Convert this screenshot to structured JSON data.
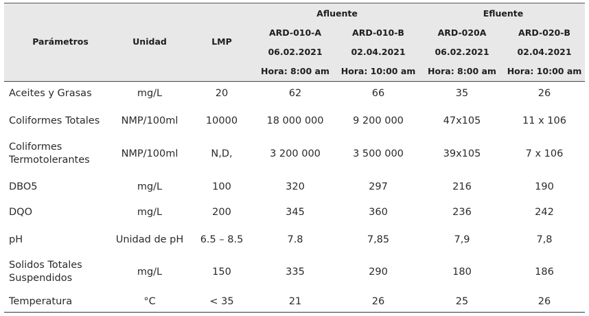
{
  "header": {
    "parametros": "Parámetros",
    "unidad": "Unidad",
    "lmp": "LMP",
    "afluente": "Afluente",
    "efluente": "Efluente",
    "samples": [
      {
        "code": "ARD-010-A",
        "date": "06.02.2021",
        "time": "Hora: 8:00 am"
      },
      {
        "code": "ARD-010-B",
        "date": "02.04.2021",
        "time": "Hora: 10:00 am"
      },
      {
        "code": "ARD-020A",
        "date": "06.02.2021",
        "time": "Hora: 8:00 am"
      },
      {
        "code": "ARD-020-B",
        "date": "02.04.2021",
        "time": "Hora: 10:00 am"
      }
    ]
  },
  "rows": [
    {
      "param": "Aceites y Grasas",
      "unit": "mg/L",
      "lmp": "20",
      "v": [
        "62",
        "66",
        "35",
        "26"
      ]
    },
    {
      "param": "Coliformes Totales",
      "unit": "NMP/100ml",
      "lmp": "10000",
      "v": [
        "18 000 000",
        "9 200 000",
        "47x105",
        "11 x 106"
      ]
    },
    {
      "param": "Coliformes Termotolerantes",
      "unit": "NMP/100ml",
      "lmp": "N,D,",
      "v": [
        "3 200 000",
        "3 500 000",
        "39x105",
        "7 x 106"
      ]
    },
    {
      "param": "DBO5",
      "unit": "mg/L",
      "lmp": "100",
      "v": [
        "320",
        "297",
        "216",
        "190"
      ]
    },
    {
      "param": "DQO",
      "unit": "mg/L",
      "lmp": "200",
      "v": [
        "345",
        "360",
        "236",
        "242"
      ]
    },
    {
      "param": "pH",
      "unit": "Unidad de pH",
      "lmp": "6.5 – 8.5",
      "v": [
        "7.8",
        "7,85",
        "7,9",
        "7,8"
      ]
    },
    {
      "param": "Solidos Totales Suspendidos",
      "unit": "mg/L",
      "lmp": "150",
      "v": [
        "335",
        "290",
        "180",
        "186"
      ]
    },
    {
      "param": "Temperatura",
      "unit": "°C",
      "lmp": "< 35",
      "v": [
        "21",
        "26",
        "25",
        "26"
      ]
    }
  ]
}
